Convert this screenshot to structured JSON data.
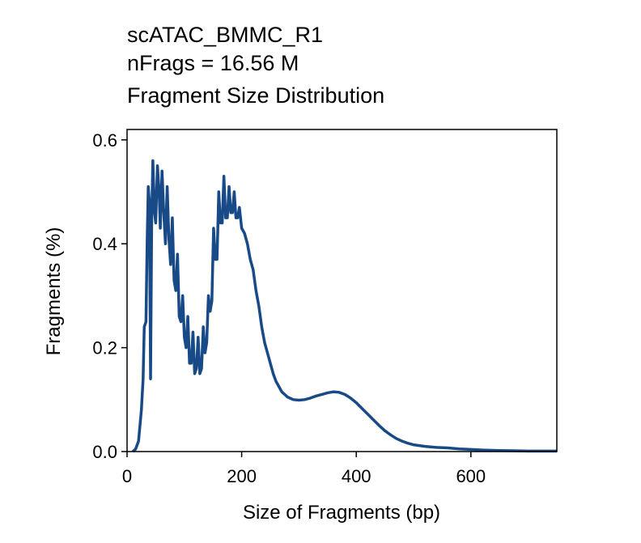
{
  "chart_data": {
    "type": "line",
    "title": [
      "scATAC_BMMC_R1",
      "nFrags = 16.56 M",
      "Fragment Size Distribution"
    ],
    "xlabel": "Size of Fragments (bp)",
    "ylabel": "Fragments (%)",
    "x": [
      10,
      15,
      20,
      25,
      28,
      30,
      33,
      35,
      37,
      39,
      41,
      43,
      45,
      48,
      50,
      53,
      56,
      58,
      61,
      64,
      67,
      70,
      73,
      76,
      79,
      82,
      85,
      88,
      91,
      94,
      97,
      100,
      103,
      106,
      109,
      112,
      115,
      118,
      121,
      124,
      127,
      130,
      133,
      136,
      139,
      142,
      145,
      148,
      151,
      154,
      157,
      160,
      163,
      166,
      169,
      172,
      175,
      178,
      181,
      184,
      187,
      190,
      193,
      196,
      200,
      205,
      210,
      215,
      220,
      225,
      230,
      235,
      240,
      245,
      250,
      255,
      260,
      265,
      270,
      275,
      280,
      290,
      300,
      310,
      320,
      330,
      340,
      350,
      360,
      370,
      380,
      390,
      400,
      410,
      420,
      430,
      440,
      450,
      460,
      470,
      480,
      490,
      500,
      520,
      540,
      560,
      580,
      600,
      620,
      650,
      700,
      750
    ],
    "series": [
      {
        "color": "#174a86",
        "values": [
          0,
          0.005,
          0.02,
          0.08,
          0.14,
          0.24,
          0.25,
          0.4,
          0.51,
          0.48,
          0.14,
          0.45,
          0.56,
          0.46,
          0.44,
          0.55,
          0.5,
          0.43,
          0.54,
          0.46,
          0.4,
          0.51,
          0.41,
          0.36,
          0.45,
          0.33,
          0.31,
          0.38,
          0.26,
          0.25,
          0.3,
          0.22,
          0.2,
          0.26,
          0.17,
          0.17,
          0.23,
          0.15,
          0.16,
          0.22,
          0.15,
          0.16,
          0.24,
          0.19,
          0.21,
          0.3,
          0.27,
          0.29,
          0.43,
          0.37,
          0.37,
          0.5,
          0.44,
          0.44,
          0.53,
          0.45,
          0.45,
          0.51,
          0.46,
          0.46,
          0.5,
          0.45,
          0.45,
          0.47,
          0.43,
          0.42,
          0.4,
          0.37,
          0.35,
          0.31,
          0.28,
          0.24,
          0.21,
          0.19,
          0.17,
          0.15,
          0.135,
          0.125,
          0.115,
          0.11,
          0.105,
          0.1,
          0.099,
          0.1,
          0.103,
          0.107,
          0.11,
          0.113,
          0.115,
          0.114,
          0.11,
          0.103,
          0.094,
          0.083,
          0.072,
          0.061,
          0.05,
          0.04,
          0.032,
          0.025,
          0.02,
          0.016,
          0.013,
          0.01,
          0.008,
          0.007,
          0.005,
          0.004,
          0.003,
          0.002,
          0.001,
          0.001
        ]
      }
    ],
    "xlim": [
      0,
      750
    ],
    "ylim": [
      0,
      0.62
    ],
    "xticks": [
      0,
      200,
      400,
      600
    ],
    "yticks": [
      {
        "value": 0,
        "label": "0.0"
      },
      0.2,
      0.4,
      0.6
    ],
    "grid": false
  }
}
